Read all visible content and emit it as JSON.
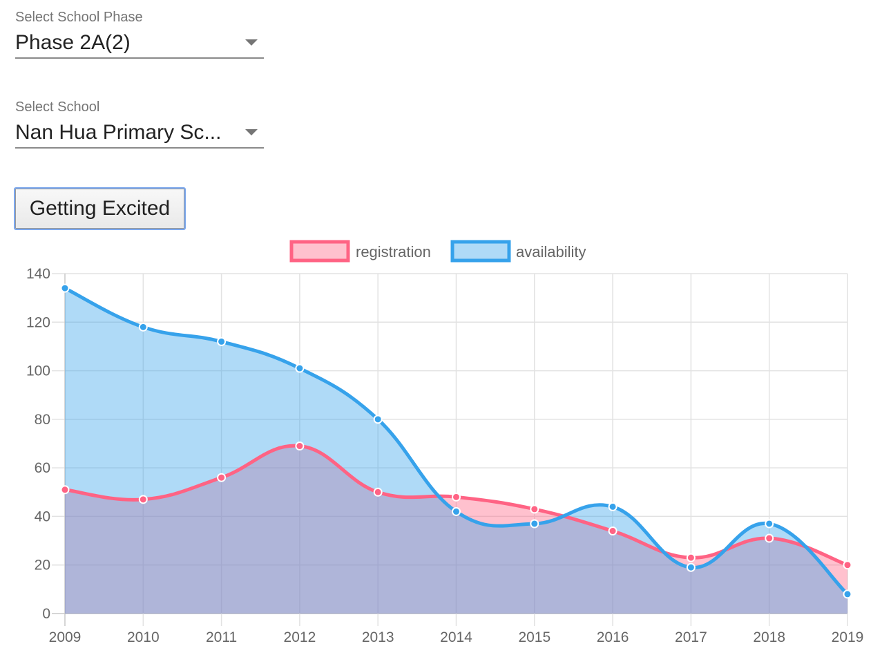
{
  "controls": {
    "phase": {
      "label": "Select School Phase",
      "value": "Phase 2A(2)"
    },
    "school": {
      "label": "Select School",
      "value": "Nan Hua Primary Sc..."
    },
    "button_label": "Getting Excited"
  },
  "chart_data": {
    "type": "area",
    "title": "",
    "xlabel": "",
    "ylabel": "",
    "x": [
      "2009",
      "2010",
      "2011",
      "2012",
      "2013",
      "2014",
      "2015",
      "2016",
      "2017",
      "2018",
      "2019"
    ],
    "ylim": [
      0,
      140
    ],
    "yticks": [
      "0",
      "20",
      "40",
      "60",
      "80",
      "100",
      "120",
      "140"
    ],
    "grid": true,
    "legend_position": "top-center",
    "series": [
      {
        "name": "registration",
        "values": [
          51,
          47,
          56,
          69,
          50,
          48,
          43,
          34,
          23,
          31,
          20
        ],
        "line_color": "#ff6384",
        "fill_color": "rgba(255,99,132,0.4)"
      },
      {
        "name": "availability",
        "values": [
          134,
          118,
          112,
          101,
          80,
          42,
          37,
          44,
          19,
          37,
          8
        ],
        "line_color": "#36a2eb",
        "fill_color": "rgba(54,162,235,0.4)"
      }
    ]
  }
}
